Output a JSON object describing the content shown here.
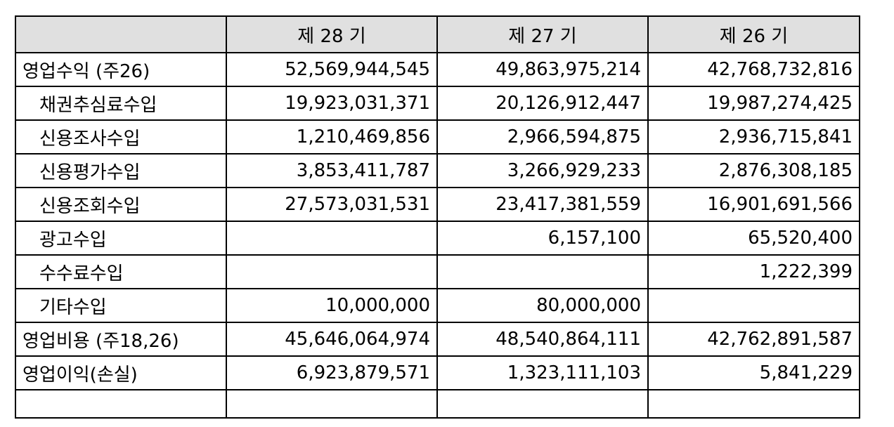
{
  "table": {
    "headers": [
      "",
      "제 28 기",
      "제 27 기",
      "제 26 기"
    ],
    "rows": [
      {
        "label": "영업수익 (주26)",
        "indent": false,
        "values": [
          "52,569,944,545",
          "49,863,975,214",
          "42,768,732,816"
        ]
      },
      {
        "label": "채권추심료수입",
        "indent": true,
        "values": [
          "19,923,031,371",
          "20,126,912,447",
          "19,987,274,425"
        ]
      },
      {
        "label": "신용조사수입",
        "indent": true,
        "values": [
          "1,210,469,856",
          "2,966,594,875",
          "2,936,715,841"
        ]
      },
      {
        "label": "신용평가수입",
        "indent": true,
        "values": [
          "3,853,411,787",
          "3,266,929,233",
          "2,876,308,185"
        ]
      },
      {
        "label": "신용조회수입",
        "indent": true,
        "values": [
          "27,573,031,531",
          "23,417,381,559",
          "16,901,691,566"
        ]
      },
      {
        "label": "광고수입",
        "indent": true,
        "values": [
          "",
          "6,157,100",
          "65,520,400"
        ]
      },
      {
        "label": "수수료수입",
        "indent": true,
        "values": [
          "",
          "",
          "1,222,399"
        ]
      },
      {
        "label": "기타수입",
        "indent": true,
        "values": [
          "10,000,000",
          "80,000,000",
          ""
        ]
      },
      {
        "label": "영업비용 (주18,26)",
        "indent": false,
        "values": [
          "45,646,064,974",
          "48,540,864,111",
          "42,762,891,587"
        ]
      },
      {
        "label": "영업이익(손실)",
        "indent": false,
        "values": [
          "6,923,879,571",
          "1,323,111,103",
          "5,841,229"
        ]
      }
    ]
  }
}
